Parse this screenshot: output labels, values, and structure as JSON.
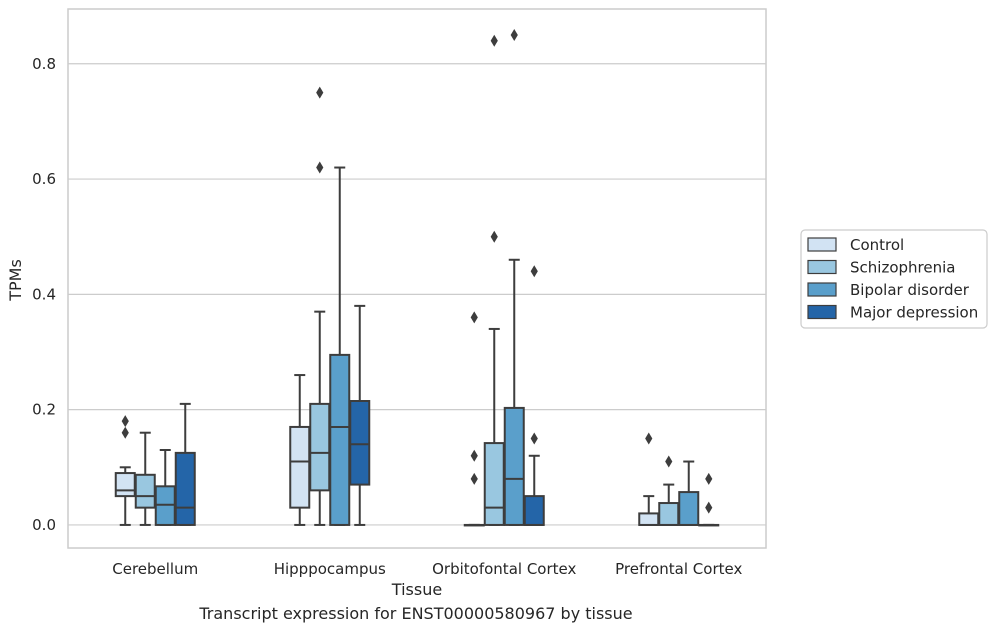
{
  "caption": "Transcript expression for ENST00000580967 by tissue",
  "colors": {
    "grid": "#cccccc",
    "frame": "#cccccc",
    "edge": "#3d3d3d",
    "series": [
      "#d2e3f3",
      "#99c7e0",
      "#5a9fcb",
      "#2465a8"
    ]
  },
  "chart_data": {
    "type": "box",
    "xlabel": "Tissue",
    "ylabel": "TPMs",
    "ylim": [
      -0.04,
      0.895
    ],
    "yticks": [
      "0.0",
      "0.2",
      "0.4",
      "0.6",
      "0.8"
    ],
    "grid": true,
    "legend_position": "right",
    "categories": [
      "Cerebellum",
      "Hipppocampus",
      "Orbitofontal Cortex",
      "Prefrontal Cortex"
    ],
    "series": [
      {
        "name": "Control",
        "boxes": [
          {
            "whislo": 0.0,
            "q1": 0.05,
            "med": 0.06,
            "q3": 0.09,
            "whishi": 0.1,
            "fliers": [
              0.16,
              0.18
            ]
          },
          {
            "whislo": 0.0,
            "q1": 0.03,
            "med": 0.11,
            "q3": 0.17,
            "whishi": 0.26,
            "fliers": []
          },
          {
            "whislo": 0.0,
            "q1": 0.0,
            "med": 0.0,
            "q3": 0.0,
            "whishi": 0.0,
            "fliers": [
              0.08,
              0.12,
              0.36
            ]
          },
          {
            "whislo": 0.0,
            "q1": 0.0,
            "med": 0.0,
            "q3": 0.02,
            "whishi": 0.05,
            "fliers": [
              0.15
            ]
          }
        ]
      },
      {
        "name": "Schizophrenia",
        "boxes": [
          {
            "whislo": 0.0,
            "q1": 0.03,
            "med": 0.05,
            "q3": 0.087,
            "whishi": 0.16,
            "fliers": []
          },
          {
            "whislo": 0.0,
            "q1": 0.06,
            "med": 0.125,
            "q3": 0.21,
            "whishi": 0.37,
            "fliers": [
              0.62,
              0.75
            ]
          },
          {
            "whislo": 0.0,
            "q1": 0.0,
            "med": 0.03,
            "q3": 0.142,
            "whishi": 0.34,
            "fliers": [
              0.5,
              0.84
            ]
          },
          {
            "whislo": 0.0,
            "q1": 0.0,
            "med": 0.0,
            "q3": 0.038,
            "whishi": 0.07,
            "fliers": [
              0.11
            ]
          }
        ]
      },
      {
        "name": "Bipolar disorder",
        "boxes": [
          {
            "whislo": 0.0,
            "q1": 0.0,
            "med": 0.035,
            "q3": 0.067,
            "whishi": 0.13,
            "fliers": []
          },
          {
            "whislo": 0.0,
            "q1": 0.0,
            "med": 0.17,
            "q3": 0.295,
            "whishi": 0.62,
            "fliers": []
          },
          {
            "whislo": 0.0,
            "q1": 0.0,
            "med": 0.08,
            "q3": 0.203,
            "whishi": 0.46,
            "fliers": [
              0.85
            ]
          },
          {
            "whislo": 0.0,
            "q1": 0.0,
            "med": 0.0,
            "q3": 0.057,
            "whishi": 0.11,
            "fliers": []
          }
        ]
      },
      {
        "name": "Major depression",
        "boxes": [
          {
            "whislo": 0.0,
            "q1": 0.0,
            "med": 0.03,
            "q3": 0.125,
            "whishi": 0.21,
            "fliers": []
          },
          {
            "whislo": 0.0,
            "q1": 0.07,
            "med": 0.14,
            "q3": 0.215,
            "whishi": 0.38,
            "fliers": []
          },
          {
            "whislo": 0.0,
            "q1": 0.0,
            "med": 0.0,
            "q3": 0.05,
            "whishi": 0.12,
            "fliers": [
              0.15,
              0.44
            ]
          },
          {
            "whislo": 0.0,
            "q1": 0.0,
            "med": 0.0,
            "q3": 0.0,
            "whishi": 0.0,
            "fliers": [
              0.03,
              0.08
            ]
          }
        ]
      }
    ]
  }
}
